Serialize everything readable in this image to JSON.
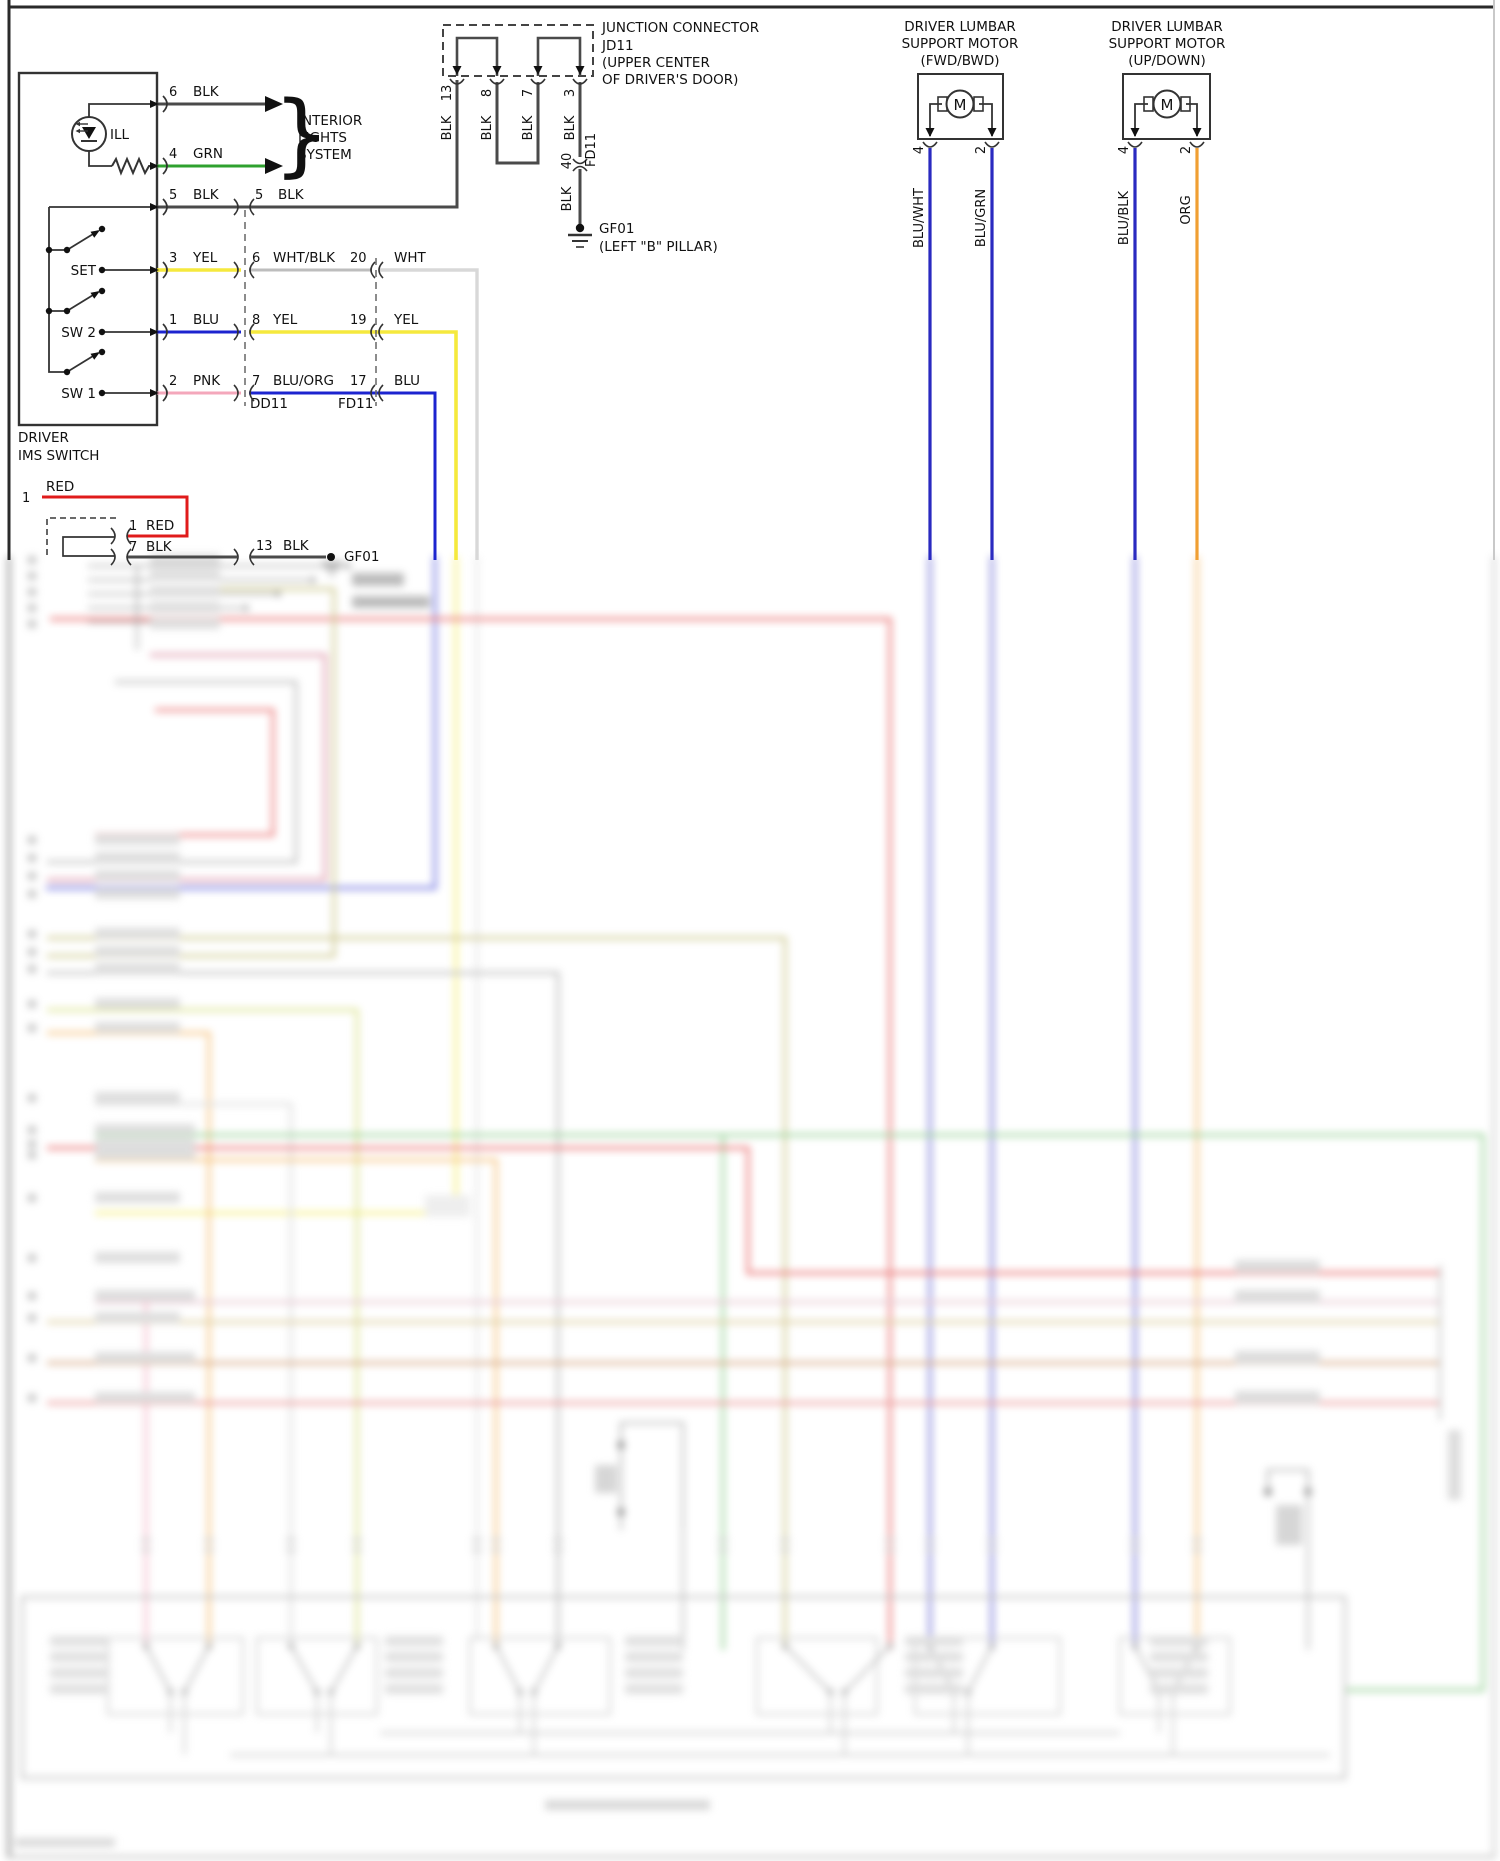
{
  "ims_switch": {
    "title1": "DRIVER",
    "title2": "IMS SWITCH",
    "lamp": "ILL",
    "sw_set": "SET",
    "sw2": "SW 2",
    "sw1": "SW 1"
  },
  "interior_lights": {
    "l1": "INTERIOR",
    "l2": "LIGHTS",
    "l3": "SYSTEM"
  },
  "rows": {
    "r6": {
      "pin": "6",
      "color": "BLK"
    },
    "r4": {
      "pin": "4",
      "color": "GRN"
    },
    "r5": {
      "pin": "5",
      "color": "BLK",
      "pin2": "5",
      "color2": "BLK"
    },
    "set": {
      "pin": "3",
      "color": "YEL",
      "pin2": "6",
      "color2": "WHT/BLK",
      "pin3": "20",
      "color3": "WHT"
    },
    "sw2": {
      "pin": "1",
      "color": "BLU",
      "pin2": "8",
      "color2": "YEL",
      "pin3": "19",
      "color3": "YEL"
    },
    "sw1": {
      "pin": "2",
      "color": "PNK",
      "pin2": "7",
      "color2": "BLU/ORG",
      "pin3": "17",
      "color3": "BLU"
    },
    "dd11": "DD11",
    "fd11": "FD11"
  },
  "jd11": {
    "l1": "JUNCTION CONNECTOR",
    "l2": "JD11",
    "l3": "(UPPER CENTER",
    "l4": "OF DRIVER'S DOOR)",
    "pin13": "13",
    "pin8": "8",
    "pin7": "7",
    "pin3": "3",
    "wire": "BLK",
    "pin40": "40",
    "conn": "FD11",
    "wire2": "BLK"
  },
  "ground": {
    "name": "GF01",
    "location": "(LEFT \"B\" PILLAR)"
  },
  "motors": [
    {
      "l1": "DRIVER LUMBAR",
      "l2": "SUPPORT MOTOR",
      "l3": "(FWD/BWD)",
      "symbol": "M",
      "pin_a": "4",
      "pin_b": "2",
      "wire_a": "BLU/WHT",
      "wire_b": "BLU/GRN"
    },
    {
      "l1": "DRIVER LUMBAR",
      "l2": "SUPPORT MOTOR",
      "l3": "(UP/DOWN)",
      "symbol": "M",
      "pin_a": "4",
      "pin_b": "2",
      "wire_a": "BLU/BLK",
      "wire_b": "ORG"
    }
  ],
  "door_junction": {
    "pin_left": "1",
    "wire_left": "RED",
    "pin1": "1",
    "wire1": "RED",
    "pin7": "7",
    "wire7": "BLK",
    "pin13": "13",
    "wire13": "BLK",
    "ground": "GF01"
  },
  "colors": {
    "blk": "#4a4a4a",
    "grn": "#2fa12f",
    "yel": "#f5e93d",
    "blu": "#1c24cf",
    "pnk": "#f4a7bb",
    "red": "#e01b1b",
    "wht": "#d8d8d8",
    "wht_blk": "#bdbdbd",
    "org": "#f09f33",
    "motor_blu": "#2a2ac0"
  }
}
